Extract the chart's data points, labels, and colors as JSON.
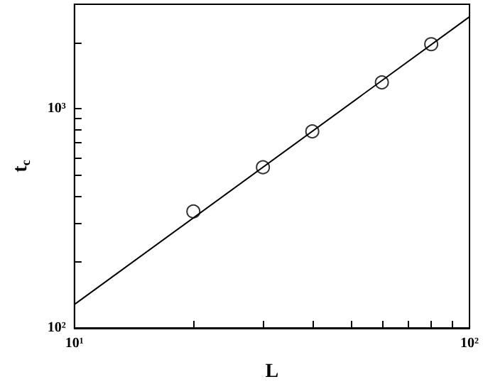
{
  "chart_data": {
    "type": "scatter",
    "xlabel": "L",
    "ylabel": "t$_{c}$",
    "log": "xy",
    "grid": false,
    "xlim": [
      10,
      100
    ],
    "ylim": [
      100,
      3000
    ],
    "xticks": [
      {
        "value": 10,
        "label": "10¹"
      },
      {
        "value": 20,
        "label": null
      },
      {
        "value": 30,
        "label": null
      },
      {
        "value": 40,
        "label": null
      },
      {
        "value": 50,
        "label": null
      },
      {
        "value": 60,
        "label": null
      },
      {
        "value": 70,
        "label": null
      },
      {
        "value": 80,
        "label": null
      },
      {
        "value": 90,
        "label": null
      },
      {
        "value": 100,
        "label": "10²"
      }
    ],
    "yticks": [
      {
        "value": 100,
        "label": "10²"
      },
      {
        "value": 200,
        "label": null
      },
      {
        "value": 300,
        "label": null
      },
      {
        "value": 400,
        "label": null
      },
      {
        "value": 500,
        "label": null
      },
      {
        "value": 600,
        "label": null
      },
      {
        "value": 700,
        "label": null
      },
      {
        "value": 800,
        "label": null
      },
      {
        "value": 900,
        "label": null
      },
      {
        "value": 1000,
        "label": "10³"
      },
      {
        "value": 2000,
        "label": null
      }
    ],
    "series": [
      {
        "type": "scatter",
        "marker": "circle",
        "color": "#000000",
        "x": [
          20,
          30,
          40,
          60,
          80
        ],
        "values": [
          340,
          541,
          789,
          1320,
          1972
        ]
      },
      {
        "type": "line",
        "marker": "none",
        "line_style": "solid",
        "color": "#000000",
        "x": [
          10,
          100
        ],
        "values": [
          128,
          2630
        ]
      }
    ]
  }
}
